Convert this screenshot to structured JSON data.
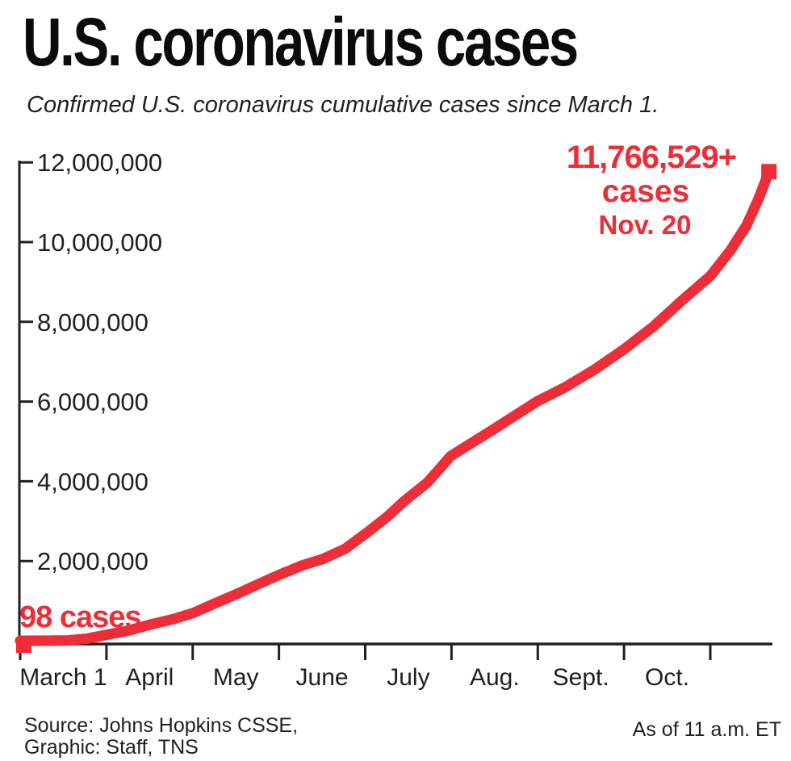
{
  "header": {
    "title": "U.S. coronavirus cases",
    "subtitle": "Confirmed U.S. coronavirus cumulative cases since March 1."
  },
  "footer": {
    "source_line1": "Source: Johns Hopkins CSSE,",
    "source_line2": "Graphic: Staff, TNS",
    "as_of": "As of 11 a.m. ET"
  },
  "colors": {
    "accent_red": "#ED2D37",
    "ink": "#231F20"
  },
  "chart_data": {
    "type": "line",
    "title": "U.S. coronavirus cases",
    "subtitle": "Confirmed U.S. coronavirus cumulative cases since March 1.",
    "grid": false,
    "legend": false,
    "x_axis": {
      "unit": "months since March 1",
      "tick_count": 9,
      "labels": [
        "March 1",
        "April",
        "May",
        "June",
        "July",
        "Aug.",
        "Sept.",
        "Oct."
      ]
    },
    "y_axis": {
      "range": [
        0,
        12200000
      ],
      "ticks": [
        {
          "value": 12000000,
          "label": "12,000,000"
        },
        {
          "value": 10000000,
          "label": "10,000,000"
        },
        {
          "value": 8000000,
          "label": "8,000,000"
        },
        {
          "value": 6000000,
          "label": "6,000,000"
        },
        {
          "value": 4000000,
          "label": "4,000,000"
        },
        {
          "value": 2000000,
          "label": "2,000,000"
        }
      ]
    },
    "series": [
      {
        "name": "Cumulative confirmed U.S. cases",
        "points": [
          [
            0,
            98
          ],
          [
            0.35,
            2500
          ],
          [
            0.55,
            9000
          ],
          [
            0.78,
            55000
          ],
          [
            1.0,
            150000
          ],
          [
            1.26,
            260000
          ],
          [
            1.52,
            410000
          ],
          [
            1.77,
            540000
          ],
          [
            2.01,
            700000
          ],
          [
            2.26,
            940000
          ],
          [
            2.52,
            1180000
          ],
          [
            2.76,
            1420000
          ],
          [
            3.01,
            1660000
          ],
          [
            3.27,
            1890000
          ],
          [
            3.51,
            2050000
          ],
          [
            3.77,
            2310000
          ],
          [
            4.02,
            2710000
          ],
          [
            4.26,
            3120000
          ],
          [
            4.44,
            3480000
          ],
          [
            4.72,
            3970000
          ],
          [
            4.99,
            4630000
          ],
          [
            5.24,
            4970000
          ],
          [
            5.47,
            5280000
          ],
          [
            5.73,
            5640000
          ],
          [
            5.99,
            6000000
          ],
          [
            6.31,
            6350000
          ],
          [
            6.65,
            6790000
          ],
          [
            7.0,
            7310000
          ],
          [
            7.34,
            7880000
          ],
          [
            7.67,
            8530000
          ],
          [
            8.0,
            9150000
          ],
          [
            8.23,
            9780000
          ],
          [
            8.42,
            10420000
          ],
          [
            8.56,
            11090000
          ],
          [
            8.68,
            11766529
          ]
        ]
      }
    ],
    "start_annotation": {
      "label": "98 cases",
      "value": 98,
      "date": "March 1"
    },
    "end_annotation": {
      "line1": "11,766,529+",
      "line2": "cases",
      "line3": "Nov. 20",
      "value": 11766529,
      "date": "Nov. 20"
    }
  }
}
